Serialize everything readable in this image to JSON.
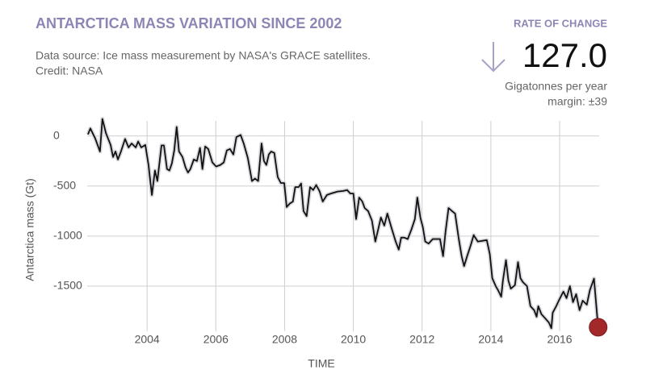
{
  "chart_data": {
    "type": "line",
    "title": "ANTARCTICA MASS VARIATION SINCE 2002",
    "subtitle": [
      "Data source: Ice mass measurement by NASA's GRACE satellites.",
      "Credit: NASA"
    ],
    "rate_label": "RATE OF CHANGE",
    "rate_value": "127.0",
    "rate_unit": "Gigatonnes per year",
    "rate_margin": "margin: ±39",
    "ylabel": "Antarctica mass (Gt)",
    "xlabel": "TIME",
    "xlim": [
      2002,
      2017.15
    ],
    "ylim": [
      -1950,
      150
    ],
    "xticks": [
      2004,
      2006,
      2008,
      2010,
      2012,
      2014,
      2016
    ],
    "yticks": [
      0,
      -500,
      -1000,
      -1500
    ],
    "grid": true,
    "color": "#111111",
    "band_color": "#d6d6dc",
    "marker_color": "#a3282a",
    "x": [
      2002.28,
      2002.35,
      2002.49,
      2002.63,
      2002.7,
      2002.8,
      2002.94,
      2003.01,
      2003.08,
      2003.15,
      2003.24,
      2003.36,
      2003.46,
      2003.55,
      2003.67,
      2003.74,
      2003.83,
      2003.95,
      2004.04,
      2004.14,
      2004.23,
      2004.3,
      2004.42,
      2004.49,
      2004.58,
      2004.65,
      2004.72,
      2004.79,
      2004.86,
      2004.93,
      2005.03,
      2005.12,
      2005.19,
      2005.26,
      2005.36,
      2005.45,
      2005.54,
      2005.61,
      2005.69,
      2005.78,
      2005.9,
      2006.01,
      2006.13,
      2006.23,
      2006.32,
      2006.41,
      2006.51,
      2006.6,
      2006.72,
      2006.81,
      2006.93,
      2007.05,
      2007.14,
      2007.23,
      2007.33,
      2007.4,
      2007.47,
      2007.54,
      2007.61,
      2007.7,
      2007.8,
      2007.89,
      2007.99,
      2008.06,
      2008.15,
      2008.24,
      2008.31,
      2008.41,
      2008.48,
      2008.55,
      2008.64,
      2008.74,
      2008.83,
      2008.92,
      2009.02,
      2009.11,
      2009.23,
      2009.35,
      2009.54,
      2009.7,
      2009.82,
      2009.91,
      2010.0,
      2010.08,
      2010.17,
      2010.26,
      2010.33,
      2010.43,
      2010.54,
      2010.64,
      2010.73,
      2010.8,
      2010.9,
      2010.99,
      2011.11,
      2011.23,
      2011.32,
      2011.39,
      2011.48,
      2011.58,
      2011.69,
      2011.79,
      2011.86,
      2011.95,
      2012.02,
      2012.09,
      2012.19,
      2012.31,
      2012.52,
      2012.61,
      2012.68,
      2012.77,
      2012.87,
      2012.96,
      2013.06,
      2013.15,
      2013.22,
      2013.31,
      2013.41,
      2013.5,
      2013.62,
      2013.88,
      2013.97,
      2014.04,
      2014.14,
      2014.21,
      2014.3,
      2014.35,
      2014.44,
      2014.51,
      2014.58,
      2014.7,
      2014.79,
      2014.86,
      2014.93,
      2015.05,
      2015.15,
      2015.26,
      2015.33,
      2015.38,
      2015.47,
      2015.59,
      2015.69,
      2015.76,
      2015.8,
      2015.9,
      2016.01,
      2016.11,
      2016.2,
      2016.3,
      2016.39,
      2016.48,
      2016.58,
      2016.67,
      2016.79,
      2016.88,
      2017.0,
      2017.12
    ],
    "values": [
      15,
      75,
      -25,
      -155,
      170,
      30,
      -90,
      -210,
      -155,
      -235,
      -155,
      -30,
      -115,
      -75,
      -115,
      -55,
      -115,
      -90,
      -290,
      -590,
      -345,
      -450,
      -95,
      -95,
      -330,
      -345,
      -275,
      -145,
      90,
      -155,
      -210,
      -315,
      -365,
      -330,
      -235,
      -250,
      -120,
      -330,
      -105,
      -130,
      -265,
      -305,
      -290,
      -265,
      -145,
      -130,
      -185,
      -10,
      10,
      -75,
      -220,
      -450,
      -425,
      -450,
      -75,
      -250,
      -290,
      -185,
      -155,
      -170,
      -410,
      -470,
      -470,
      -710,
      -675,
      -655,
      -510,
      -510,
      -475,
      -750,
      -800,
      -510,
      -540,
      -490,
      -555,
      -655,
      -590,
      -575,
      -555,
      -550,
      -540,
      -575,
      -575,
      -830,
      -615,
      -655,
      -720,
      -750,
      -845,
      -1055,
      -920,
      -815,
      -895,
      -775,
      -920,
      -1055,
      -1135,
      -1015,
      -1015,
      -1030,
      -935,
      -830,
      -615,
      -815,
      -910,
      -1055,
      -1075,
      -1030,
      -1030,
      -1200,
      -960,
      -720,
      -750,
      -775,
      -1015,
      -1200,
      -1300,
      -1200,
      -1095,
      -990,
      -1055,
      -1040,
      -1180,
      -1420,
      -1500,
      -1540,
      -1605,
      -1445,
      -1240,
      -1445,
      -1525,
      -1490,
      -1260,
      -1420,
      -1460,
      -1500,
      -1700,
      -1740,
      -1805,
      -1700,
      -1780,
      -1825,
      -1865,
      -1920,
      -1765,
      -1700,
      -1620,
      -1555,
      -1620,
      -1500,
      -1660,
      -1580,
      -1740,
      -1645,
      -1685,
      -1540,
      -1425,
      -1910
    ]
  }
}
